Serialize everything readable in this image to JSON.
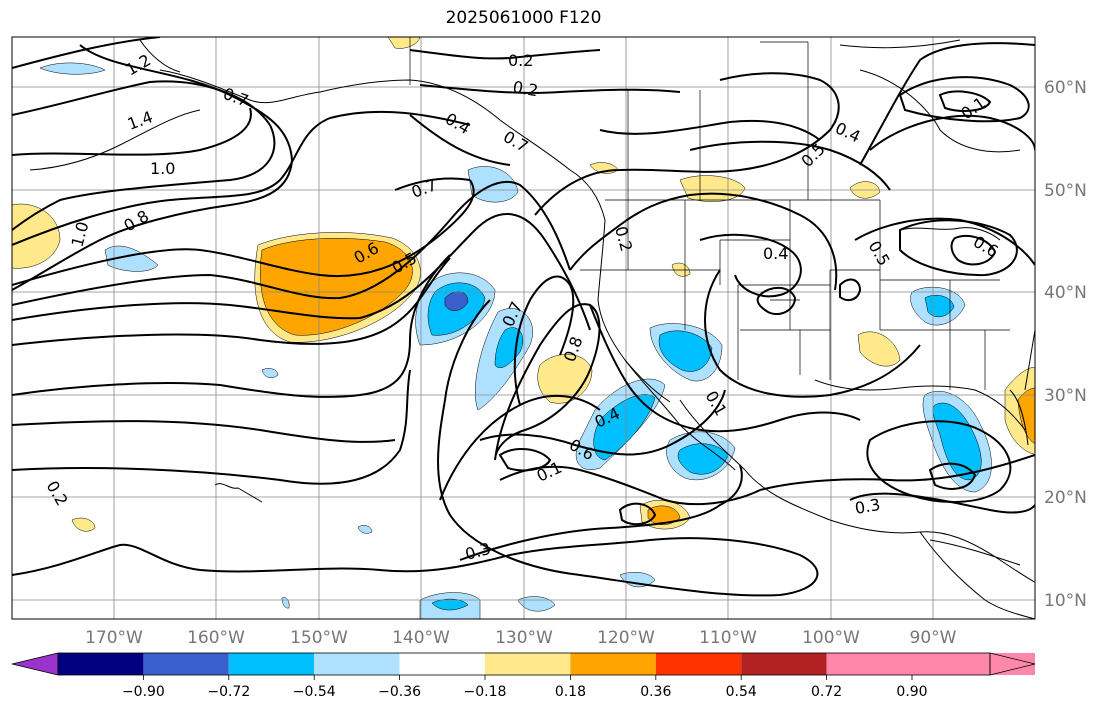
{
  "title": "2025061000 F120",
  "map": {
    "lon_labels": [
      "170°W",
      "160°W",
      "150°W",
      "140°W",
      "130°W",
      "120°W",
      "110°W",
      "100°W",
      "90°W"
    ],
    "lat_labels": [
      "60°N",
      "50°N",
      "40°N",
      "30°N",
      "20°N",
      "10°N"
    ],
    "contour_labels": [
      "1.2",
      "1.4",
      "1.0",
      "1.0",
      "0.8",
      "0.7",
      "0.2",
      "0.2",
      "0.4",
      "0.7",
      "0.6",
      "0.5",
      "0.7",
      "0.8",
      "0.2",
      "0.4",
      "0.4",
      "0.5",
      "0.6",
      "0.1",
      "0.4",
      "0.6",
      "0.1",
      "0.3",
      "0.3",
      "0.2",
      "0.5",
      "0.1",
      "0.7"
    ],
    "colors": {
      "coast": "#000000",
      "grid": "#888888",
      "contour": "#000000",
      "pale_yellow": "#ffe98a",
      "orange": "#ffa500",
      "light_blue": "#aee0ff",
      "sky_blue": "#00bfff",
      "royal_blue": "#3a5fcd"
    }
  },
  "colorbar": {
    "labels": [
      "−0.90",
      "−0.72",
      "−0.54",
      "−0.36",
      "−0.18",
      "0.18",
      "0.36",
      "0.54",
      "0.72",
      "0.90"
    ],
    "colors": [
      "#9933cc",
      "#000080",
      "#3a5fcd",
      "#00bfff",
      "#b0e2ff",
      "#ffffff",
      "#ffe98a",
      "#ffa500",
      "#ff3300",
      "#b22222",
      "#ff88aa"
    ]
  }
}
